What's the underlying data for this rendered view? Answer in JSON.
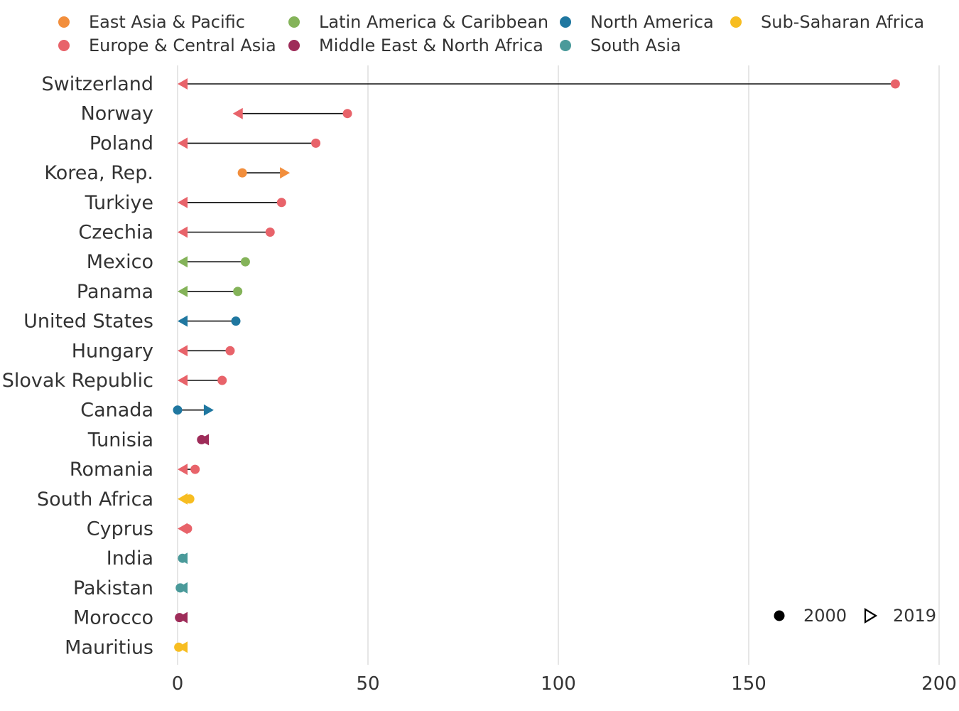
{
  "chart_data": {
    "type": "dumbbell",
    "title": "",
    "xlabel": "",
    "ylabel": "",
    "xlim": [
      0,
      200
    ],
    "x_ticks": [
      0,
      50,
      100,
      150,
      200
    ],
    "grid": "vertical",
    "legend_position": "top",
    "region_legend": [
      {
        "name": "East Asia & Pacific",
        "color": "#F28E3C"
      },
      {
        "name": "Europe & Central Asia",
        "color": "#E8636A"
      },
      {
        "name": "Latin America & Caribbean",
        "color": "#84B359"
      },
      {
        "name": "Middle East & North Africa",
        "color": "#9E2C59"
      },
      {
        "name": "North America",
        "color": "#1F77A0"
      },
      {
        "name": "South Asia",
        "color": "#4A9A9A"
      },
      {
        "name": "Sub-Saharan Africa",
        "color": "#F7BD21"
      }
    ],
    "year_legend": {
      "start": "2000",
      "end": "2019",
      "position": "bottom-right"
    },
    "rows": [
      {
        "country": "Switzerland",
        "region": "Europe & Central Asia",
        "v2000": 188.5,
        "v2019": 0
      },
      {
        "country": "Norway",
        "region": "Europe & Central Asia",
        "v2000": 44.6,
        "v2019": 14.5
      },
      {
        "country": "Poland",
        "region": "Europe & Central Asia",
        "v2000": 36.3,
        "v2019": 0
      },
      {
        "country": "Korea, Rep.",
        "region": "East Asia & Pacific",
        "v2000": 17.0,
        "v2019": 29.5
      },
      {
        "country": "Turkiye",
        "region": "Europe & Central Asia",
        "v2000": 27.3,
        "v2019": 0
      },
      {
        "country": "Czechia",
        "region": "Europe & Central Asia",
        "v2000": 24.3,
        "v2019": 0
      },
      {
        "country": "Mexico",
        "region": "Latin America & Caribbean",
        "v2000": 17.8,
        "v2019": 0
      },
      {
        "country": "Panama",
        "region": "Latin America & Caribbean",
        "v2000": 15.8,
        "v2019": 0
      },
      {
        "country": "United States",
        "region": "North America",
        "v2000": 15.3,
        "v2019": 0
      },
      {
        "country": "Hungary",
        "region": "Europe & Central Asia",
        "v2000": 13.8,
        "v2019": 0
      },
      {
        "country": "Slovak Republic",
        "region": "Europe & Central Asia",
        "v2000": 11.7,
        "v2019": 0
      },
      {
        "country": "Canada",
        "region": "North America",
        "v2000": 0,
        "v2019": 9.5
      },
      {
        "country": "Tunisia",
        "region": "Middle East & North Africa",
        "v2000": 6.3,
        "v2019": 5.6
      },
      {
        "country": "Romania",
        "region": "Europe & Central Asia",
        "v2000": 4.6,
        "v2019": 0
      },
      {
        "country": "South Africa",
        "region": "Sub-Saharan Africa",
        "v2000": 3.2,
        "v2019": 0
      },
      {
        "country": "Cyprus",
        "region": "Europe & Central Asia",
        "v2000": 2.6,
        "v2019": 0
      },
      {
        "country": "India",
        "region": "South Asia",
        "v2000": 1.3,
        "v2019": 0
      },
      {
        "country": "Pakistan",
        "region": "South Asia",
        "v2000": 0.7,
        "v2019": 0
      },
      {
        "country": "Morocco",
        "region": "Middle East & North Africa",
        "v2000": 0.5,
        "v2019": 0
      },
      {
        "country": "Mauritius",
        "region": "Sub-Saharan Africa",
        "v2000": 0.3,
        "v2019": 0
      }
    ]
  }
}
